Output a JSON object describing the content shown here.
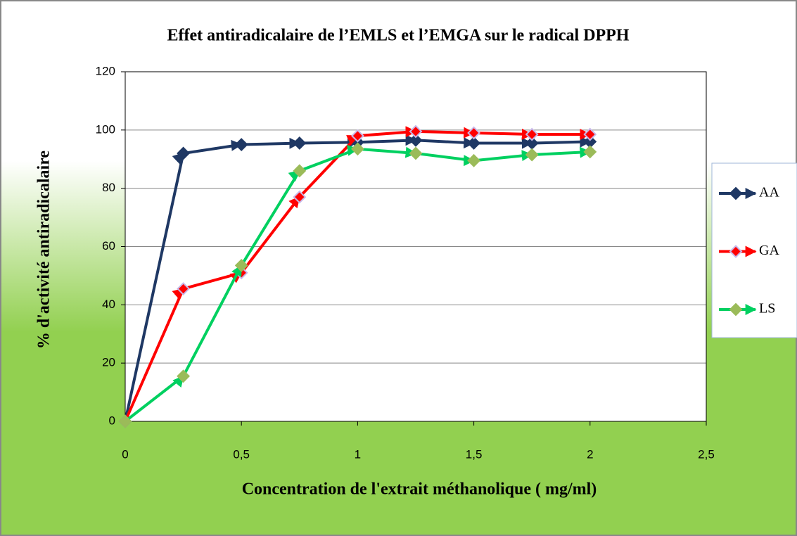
{
  "chart_data": {
    "type": "line",
    "title": "Effet antiradicalaire de l’EMLS et l’EMGA sur le radical DPPH",
    "x_label": "Concentration de l'extrait méthanolique ( mg/ml)",
    "y_label": "% d'activité antiradicalaire",
    "x": [
      0,
      0.25,
      0.5,
      0.75,
      1,
      1.25,
      1.5,
      1.75,
      2
    ],
    "series": [
      {
        "name": "AA",
        "color": "#1f3864",
        "values": [
          0,
          92,
          95,
          95.5,
          95.8,
          96.5,
          95.5,
          95.5,
          96
        ]
      },
      {
        "name": "GA",
        "color": "#ff0000",
        "values": [
          0,
          45.5,
          51,
          77,
          98,
          99.5,
          99,
          98.5,
          98.5
        ]
      },
      {
        "name": "LS",
        "color": "#00d060",
        "values": [
          0,
          15.5,
          53.5,
          86,
          93.5,
          92,
          89.5,
          91.5,
          92.5
        ]
      }
    ],
    "xlim": [
      0,
      2.5
    ],
    "xticks": [
      0,
      {
        "value": 0.5,
        "label": "0,5"
      },
      1,
      {
        "value": 1.5,
        "label": "1,5"
      },
      2,
      {
        "value": 2.5,
        "label": "2,5"
      }
    ],
    "ylim": [
      0,
      120
    ],
    "yticks": [
      0,
      20,
      40,
      60,
      80,
      100,
      120
    ],
    "grid": true,
    "legend": "right"
  }
}
